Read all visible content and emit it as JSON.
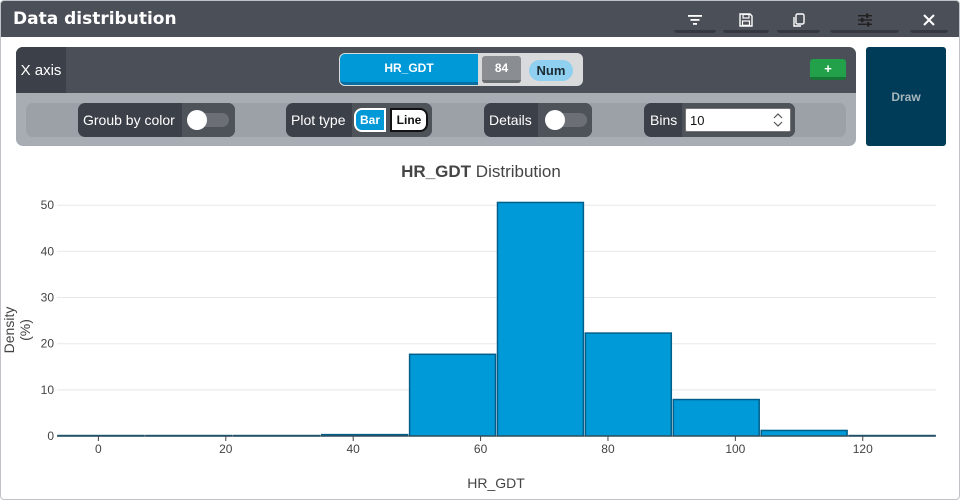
{
  "window": {
    "title": "Data distribution"
  },
  "toolbar": {
    "buttons": [
      {
        "id": "filter",
        "icon": "filter-icon",
        "color": "#d63fcf"
      },
      {
        "id": "save",
        "icon": "save-icon",
        "color": "#1cc4dc"
      },
      {
        "id": "copy",
        "icon": "copy-icon",
        "color": "#1f9e3a"
      },
      {
        "id": "settings",
        "icon": "sliders-icon",
        "color": "#f6b800"
      },
      {
        "id": "close",
        "icon": "close-icon",
        "color": "#e02a3a"
      }
    ]
  },
  "config": {
    "x_axis_label": "X axis",
    "variable": {
      "name": "HR_GDT",
      "count": "84",
      "type": "Num"
    },
    "add_label": "+",
    "group_by_color_label": "Groub by color",
    "plot_type_label": "Plot type",
    "plot_type_options": [
      "Bar",
      "Line"
    ],
    "plot_type_selected": "Bar",
    "details_label": "Details",
    "bins_label": "Bins",
    "bins_value": "10",
    "draw_label": "Draw"
  },
  "chart_data": {
    "type": "bar",
    "title_bold": "HR_GDT",
    "title_rest": " Distribution",
    "xlabel": "HR_GDT",
    "ylabel": "Density (%)",
    "xlim": [
      -6.5,
      131.5
    ],
    "ylim": [
      0,
      52
    ],
    "xticks": [
      0,
      20,
      40,
      60,
      80,
      100,
      120
    ],
    "yticks": [
      0,
      10,
      20,
      30,
      40,
      50
    ],
    "bin_width": 13.8,
    "bins": [
      {
        "x0": -6.5,
        "value": 0.1
      },
      {
        "x0": 7.3,
        "value": 0.1
      },
      {
        "x0": 21.1,
        "value": 0.1
      },
      {
        "x0": 34.9,
        "value": 0.3
      },
      {
        "x0": 48.7,
        "value": 17.7
      },
      {
        "x0": 62.5,
        "value": 50.6
      },
      {
        "x0": 76.3,
        "value": 22.3
      },
      {
        "x0": 90.1,
        "value": 7.9
      },
      {
        "x0": 103.9,
        "value": 1.2
      },
      {
        "x0": 117.7,
        "value": 0.1
      }
    ],
    "bar_color": "#009ad8",
    "bar_edge": "#005f8a",
    "grid": true
  }
}
